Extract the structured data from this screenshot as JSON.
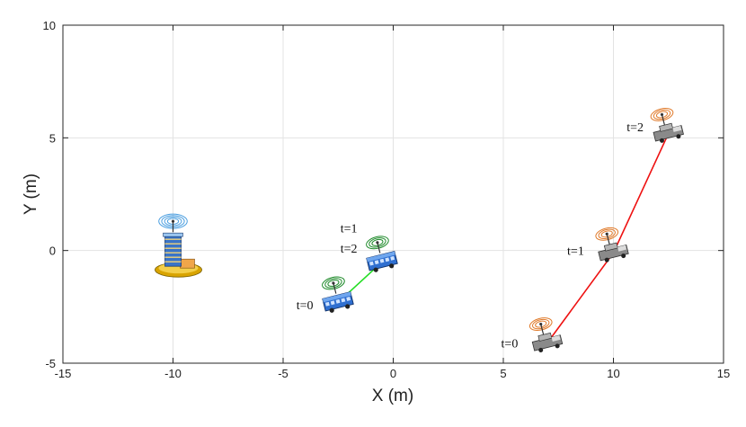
{
  "chart_data": {
    "type": "scatter",
    "xlabel": "X (m)",
    "ylabel": "Y (m)",
    "xlim": [
      -15,
      15
    ],
    "ylim": [
      -5,
      10
    ],
    "xticks": [
      "-15",
      "-10",
      "-5",
      "0",
      "5",
      "10",
      "15"
    ],
    "yticks": [
      "-5",
      "0",
      "5",
      "10"
    ],
    "grid": true,
    "base_station": {
      "x": -10,
      "y": -0.3,
      "icon": "building-antenna-icon"
    },
    "series": [
      {
        "vehicle": "bus-icon",
        "line_color": "#22dd22",
        "points": [
          {
            "t": "t=0",
            "x": -2.5,
            "y": -2.3
          },
          {
            "t": "t=1",
            "x": -0.5,
            "y": -0.5
          },
          {
            "t": "t=2",
            "x": -0.5,
            "y": -0.5
          }
        ],
        "labels": [
          {
            "text": "t=0",
            "x": -4.4,
            "y": -2.4
          },
          {
            "text": "t=1",
            "x": -2.4,
            "y": 1.0
          },
          {
            "text": "t=2",
            "x": -2.4,
            "y": 0.1
          }
        ]
      },
      {
        "vehicle": "car-icon",
        "line_color": "#ee1111",
        "points": [
          {
            "t": "t=0",
            "x": 7.0,
            "y": -4.1
          },
          {
            "t": "t=1",
            "x": 10.0,
            "y": -0.1
          },
          {
            "t": "t=2",
            "x": 12.5,
            "y": 5.2
          }
        ],
        "labels": [
          {
            "text": "t=0",
            "x": 4.9,
            "y": -4.1
          },
          {
            "text": "t=1",
            "x": 7.9,
            "y": 0.0
          },
          {
            "text": "t=2",
            "x": 10.6,
            "y": 5.5
          }
        ]
      }
    ]
  }
}
